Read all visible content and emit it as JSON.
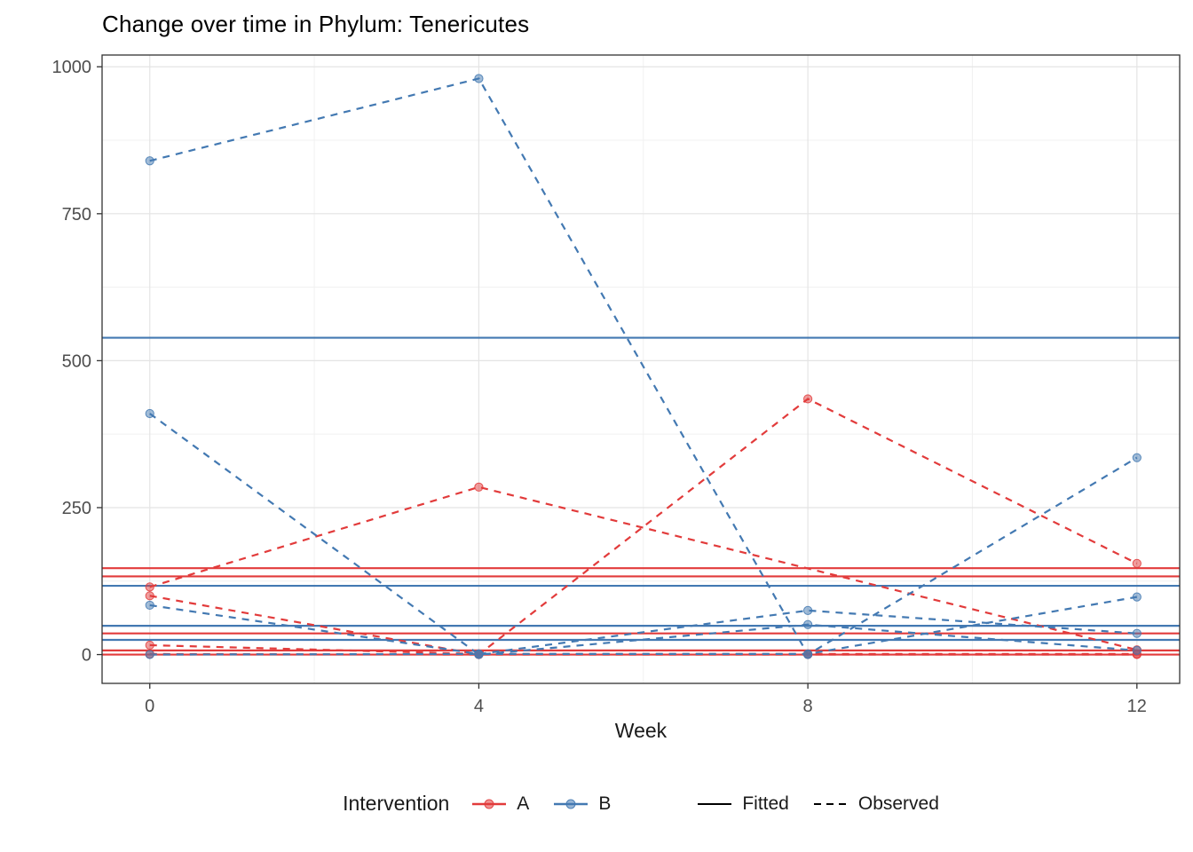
{
  "chart_data": {
    "type": "line",
    "title": "Change over time in Phylum: Tenericutes",
    "xlabel": "Week",
    "ylabel": "",
    "x_ticks": [
      0,
      4,
      8,
      12
    ],
    "x_minor": [
      2,
      6,
      10
    ],
    "y_ticks": [
      0,
      250,
      500,
      750,
      1000
    ],
    "y_minor": [
      125,
      375,
      625,
      875
    ],
    "xlim": [
      -0.58,
      12.52
    ],
    "ylim": [
      -49,
      1020
    ],
    "grid": "on",
    "legend_position": "bottom",
    "colors": {
      "A": "#e23b3b",
      "B": "#4379b2",
      "key_black": "#000000",
      "axis_text": "#4d4d4d",
      "panel_border": "#333333",
      "grid_major": "#e4e4e4",
      "grid_minor": "#f1f1f1"
    },
    "legend": {
      "title": "Intervention",
      "a": "A",
      "b": "B",
      "fitted": "Fitted",
      "observed": "Observed"
    },
    "fitted_lines": [
      {
        "group": "A",
        "value": 147
      },
      {
        "group": "A",
        "value": 133
      },
      {
        "group": "A",
        "value": 36
      },
      {
        "group": "A",
        "value": 7
      },
      {
        "group": "A",
        "value": 0
      },
      {
        "group": "B",
        "value": 539
      },
      {
        "group": "B",
        "value": 117
      },
      {
        "group": "B",
        "value": 49
      },
      {
        "group": "B",
        "value": 25
      }
    ],
    "observed_series": [
      {
        "group": "A",
        "points": [
          [
            0,
            115
          ],
          [
            4,
            285
          ],
          [
            12,
            8
          ]
        ]
      },
      {
        "group": "A",
        "points": [
          [
            0,
            100
          ],
          [
            4,
            0
          ],
          [
            8,
            435
          ],
          [
            12,
            155
          ]
        ]
      },
      {
        "group": "A",
        "points": [
          [
            0,
            16
          ],
          [
            4,
            1
          ],
          [
            8,
            1
          ],
          [
            12,
            1
          ]
        ]
      },
      {
        "group": "A",
        "points": [
          [
            0,
            1
          ],
          [
            4,
            0
          ],
          [
            8,
            0
          ],
          [
            12,
            0
          ]
        ]
      },
      {
        "group": "B",
        "points": [
          [
            0,
            840
          ],
          [
            4,
            980
          ],
          [
            8,
            0
          ],
          [
            12,
            335
          ]
        ]
      },
      {
        "group": "B",
        "points": [
          [
            0,
            410
          ],
          [
            4,
            0
          ],
          [
            8,
            51
          ],
          [
            12,
            7
          ]
        ]
      },
      {
        "group": "B",
        "points": [
          [
            0,
            84
          ],
          [
            4,
            1
          ],
          [
            8,
            75
          ],
          [
            12,
            36
          ]
        ]
      },
      {
        "group": "B",
        "points": [
          [
            0,
            0
          ],
          [
            4,
            1
          ],
          [
            8,
            1
          ],
          [
            12,
            98
          ]
        ]
      }
    ]
  }
}
